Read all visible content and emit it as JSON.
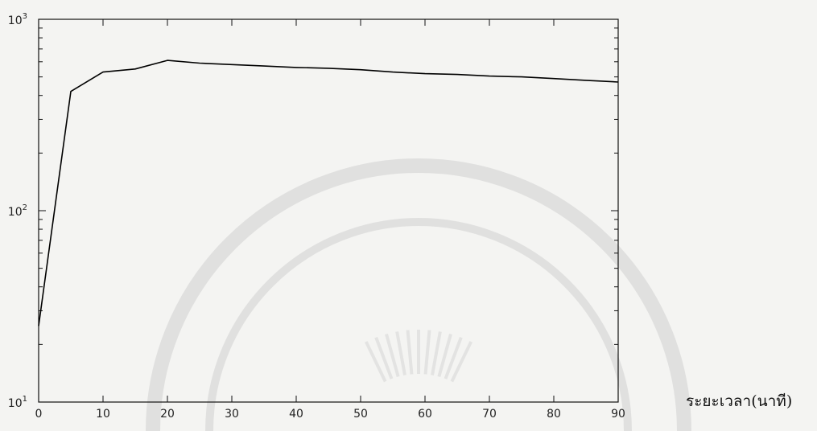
{
  "chart_data": {
    "type": "line",
    "xlabel": "ระยะเวลา(นาที)",
    "ylabel": "",
    "title": "",
    "xlim": [
      0,
      90
    ],
    "ylim": [
      10,
      1000
    ],
    "yscale": "log",
    "x_ticks": [
      "0",
      "10",
      "20",
      "30",
      "40",
      "50",
      "60",
      "70",
      "80",
      "90"
    ],
    "y_ticks": [
      {
        "base": "10",
        "exp": "1"
      },
      {
        "base": "10",
        "exp": "2"
      },
      {
        "base": "10",
        "exp": "3"
      }
    ],
    "grid": false,
    "series": [
      {
        "color": "#000000",
        "x": [
          0,
          5,
          10,
          15,
          20,
          25,
          30,
          35,
          40,
          45,
          50,
          55,
          60,
          65,
          70,
          75,
          80,
          85,
          90
        ],
        "y": [
          25,
          420,
          530,
          550,
          610,
          590,
          580,
          570,
          560,
          555,
          545,
          530,
          520,
          515,
          505,
          500,
          490,
          480,
          470
        ]
      }
    ]
  }
}
